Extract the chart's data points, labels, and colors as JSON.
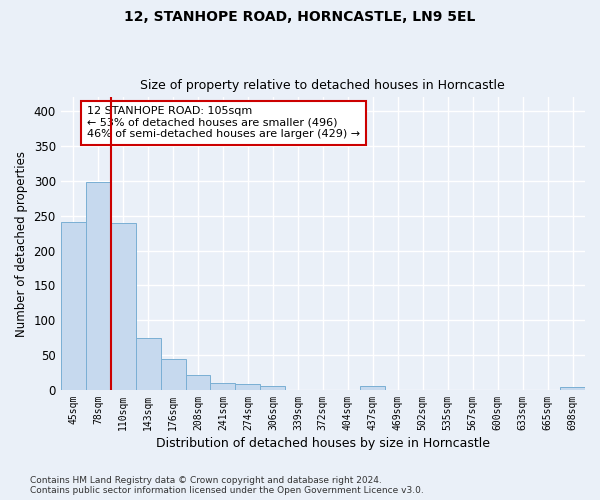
{
  "title1": "12, STANHOPE ROAD, HORNCASTLE, LN9 5EL",
  "title2": "Size of property relative to detached houses in Horncastle",
  "xlabel": "Distribution of detached houses by size in Horncastle",
  "ylabel": "Number of detached properties",
  "bar_color": "#c6d9ee",
  "bar_edge_color": "#7aafd4",
  "categories": [
    "45sqm",
    "78sqm",
    "110sqm",
    "143sqm",
    "176sqm",
    "208sqm",
    "241sqm",
    "274sqm",
    "306sqm",
    "339sqm",
    "372sqm",
    "404sqm",
    "437sqm",
    "469sqm",
    "502sqm",
    "535sqm",
    "567sqm",
    "600sqm",
    "633sqm",
    "665sqm",
    "698sqm"
  ],
  "values": [
    241,
    298,
    239,
    75,
    45,
    21,
    10,
    8,
    5,
    0,
    0,
    0,
    5,
    0,
    0,
    0,
    0,
    0,
    0,
    0,
    4
  ],
  "vline_color": "#cc0000",
  "vline_x_index": 1.5,
  "annotation_text": "12 STANHOPE ROAD: 105sqm\n← 53% of detached houses are smaller (496)\n46% of semi-detached houses are larger (429) →",
  "annotation_box_color": "white",
  "annotation_box_edge": "#cc0000",
  "ylim": [
    0,
    420
  ],
  "yticks": [
    0,
    50,
    100,
    150,
    200,
    250,
    300,
    350,
    400
  ],
  "footnote": "Contains HM Land Registry data © Crown copyright and database right 2024.\nContains public sector information licensed under the Open Government Licence v3.0.",
  "background_color": "#eaf0f8",
  "grid_color": "#ffffff",
  "figsize": [
    6.0,
    5.0
  ],
  "dpi": 100
}
